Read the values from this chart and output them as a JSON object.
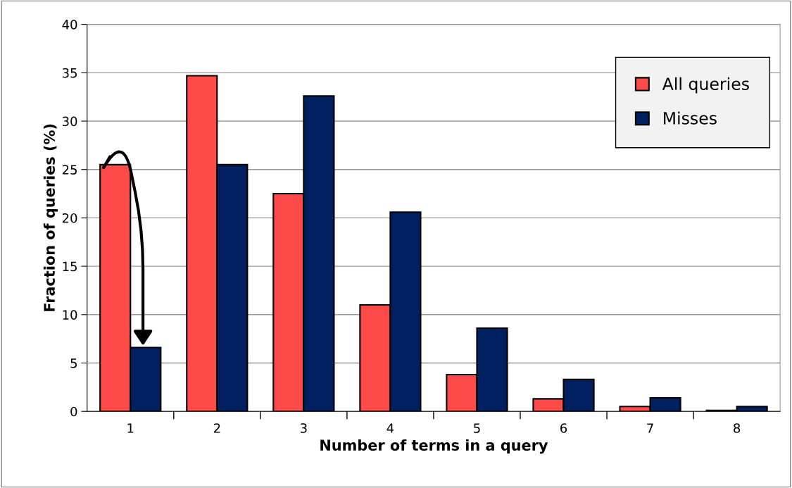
{
  "chart_data": {
    "type": "bar",
    "xlabel": "Number of terms in a query",
    "ylabel": "Fraction of queries (%)",
    "categories": [
      "1",
      "2",
      "3",
      "4",
      "5",
      "6",
      "7",
      "8"
    ],
    "series": [
      {
        "name": "All queries",
        "color": "#ff4a4a",
        "values": [
          25.5,
          34.7,
          22.5,
          11.0,
          3.8,
          1.3,
          0.5,
          0.1
        ]
      },
      {
        "name": "Misses",
        "color": "#002060",
        "values": [
          6.6,
          25.5,
          32.6,
          20.6,
          8.6,
          3.3,
          1.4,
          0.5
        ]
      }
    ],
    "ylim": [
      0,
      40
    ],
    "yticks": [
      0,
      5,
      10,
      15,
      20,
      25,
      30,
      35,
      40
    ],
    "grid": "y",
    "legend": "top right"
  }
}
